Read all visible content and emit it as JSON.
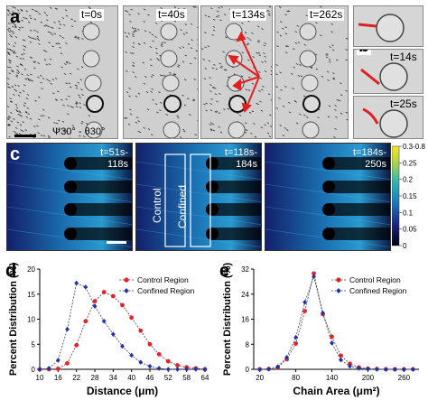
{
  "panels": {
    "a": {
      "letter": "a",
      "times": [
        "t=0s",
        "t=40s",
        "t=134s",
        "t=262s"
      ],
      "angle_label": "Ψ30° - θ30°"
    },
    "b": {
      "letter": "b",
      "times": [
        "t=14s",
        "t=25s"
      ]
    },
    "c": {
      "letter": "c",
      "times": [
        [
          "t=51s-",
          "118s"
        ],
        [
          "t=118s-",
          "184s"
        ],
        [
          "t=184s-",
          "250s"
        ]
      ],
      "region_control": "Control",
      "region_confined": "Confined",
      "colorbar_ticks": [
        "0.3-0.8",
        "0.25",
        "0.2",
        "0.15",
        "0.1",
        "0.05",
        "0"
      ]
    }
  },
  "chart_data": [
    {
      "panel": "d",
      "type": "line",
      "xlabel": "Distance (μm)",
      "ylabel": "Percent Distribution (%)",
      "xticks": [
        10,
        16,
        22,
        28,
        34,
        40,
        46,
        52,
        58,
        64
      ],
      "yticks": [
        0,
        5,
        10,
        15,
        20
      ],
      "xlim": [
        10,
        64
      ],
      "ylim": [
        0,
        20
      ],
      "series": [
        {
          "name": "Control Region",
          "color": "#e8202a",
          "marker": "circle",
          "x": [
            10,
            13,
            16,
            19,
            22,
            25,
            28,
            31,
            34,
            37,
            40,
            43,
            46,
            49,
            52,
            55,
            58,
            61,
            64
          ],
          "y": [
            0,
            0,
            0.1,
            1.2,
            4.8,
            9.6,
            13.6,
            15.4,
            14.6,
            12.8,
            10.3,
            7.7,
            5.0,
            3.0,
            1.6,
            0.8,
            0.4,
            0.2,
            0
          ]
        },
        {
          "name": "Confined Region",
          "color": "#2030b0",
          "marker": "diamond",
          "x": [
            10,
            13,
            16,
            19,
            22,
            25,
            28,
            31,
            34,
            37,
            40,
            43,
            46,
            49,
            52,
            55,
            58,
            61,
            64
          ],
          "y": [
            0,
            0.2,
            1.8,
            8.0,
            17.2,
            16.4,
            12.6,
            9.6,
            7.0,
            4.6,
            2.8,
            1.4,
            0.6,
            0.2,
            0,
            0,
            0,
            0,
            0
          ]
        }
      ]
    },
    {
      "panel": "e",
      "type": "line",
      "xlabel": "Chain Area (μm²)",
      "ylabel": "Percent Distribution (%)",
      "xticks": [
        20,
        80,
        140,
        200,
        260
      ],
      "yticks": [
        0,
        8,
        16,
        24,
        32
      ],
      "xlim": [
        10,
        285
      ],
      "ylim": [
        0,
        32
      ],
      "series": [
        {
          "name": "Control Region",
          "color": "#e8202a",
          "marker": "circle",
          "x": [
            20,
            35,
            50,
            65,
            80,
            95,
            110,
            125,
            140,
            155,
            170,
            185,
            200,
            215,
            230,
            245,
            260,
            275
          ],
          "y": [
            0,
            0.1,
            0.6,
            3.2,
            8.2,
            18.6,
            30.6,
            17.6,
            10.4,
            4.4,
            1.8,
            0.6,
            0.2,
            0.1,
            0,
            0,
            0,
            0
          ]
        },
        {
          "name": "Confined Region",
          "color": "#2030b0",
          "marker": "diamond",
          "x": [
            20,
            35,
            50,
            65,
            80,
            95,
            110,
            125,
            140,
            155,
            170,
            185,
            200,
            215,
            230,
            245,
            260,
            275
          ],
          "y": [
            0,
            0.1,
            0.8,
            3.8,
            10.2,
            21.4,
            29.6,
            18.0,
            8.4,
            3.0,
            1.0,
            0.3,
            0.1,
            0,
            0,
            0,
            0,
            0
          ]
        }
      ]
    }
  ],
  "colors": {
    "control": "#e8202a",
    "confined": "#2030b0",
    "arrow": "#e02020"
  }
}
